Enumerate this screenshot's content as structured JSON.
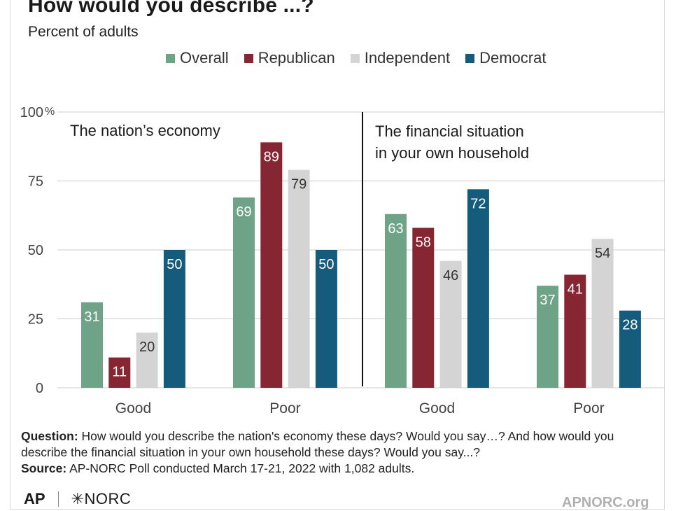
{
  "header": {
    "title": "How would you describe ...?",
    "subtitle": "Percent of adults"
  },
  "legend": [
    {
      "label": "Overall",
      "color": "#6fa387"
    },
    {
      "label": "Republican",
      "color": "#862633"
    },
    {
      "label": "Independent",
      "color": "#d4d4d4"
    },
    {
      "label": "Democrat",
      "color": "#155c7c"
    }
  ],
  "chart_data": {
    "type": "bar",
    "ylim": [
      0,
      100
    ],
    "yticks": [
      "0",
      "25",
      "50",
      "75",
      "100"
    ],
    "y_unit": "%",
    "grid": true,
    "legend_position": "top",
    "panels": [
      {
        "label": "The nation’s economy",
        "categories": [
          "Good",
          "Poor"
        ],
        "series": [
          {
            "name": "Overall",
            "values": [
              31,
              69
            ]
          },
          {
            "name": "Republican",
            "values": [
              11,
              89
            ]
          },
          {
            "name": "Independent",
            "values": [
              20,
              79
            ]
          },
          {
            "name": "Democrat",
            "values": [
              50,
              50
            ]
          }
        ]
      },
      {
        "label": "The financial situation in your own household",
        "label_lines": [
          "The financial situation",
          "in your own household"
        ],
        "categories": [
          "Good",
          "Poor"
        ],
        "series": [
          {
            "name": "Overall",
            "values": [
              63,
              37
            ]
          },
          {
            "name": "Republican",
            "values": [
              58,
              41
            ]
          },
          {
            "name": "Independent",
            "values": [
              46,
              54
            ]
          },
          {
            "name": "Democrat",
            "values": [
              72,
              28
            ]
          }
        ]
      }
    ]
  },
  "notes": {
    "question_label": "Question:",
    "question_text": "How would you describe the nation's economy these days? Would you say…? And how would you describe the financial situation in your own household these days? Would you say...?",
    "source_label": "Source:",
    "source_text": "AP-NORC Poll conducted March 17-21, 2022 with 1,082 adults."
  },
  "footer": {
    "logo_ap": "AP",
    "logo_norc": "✳NORC",
    "site": "APNORC.org"
  }
}
